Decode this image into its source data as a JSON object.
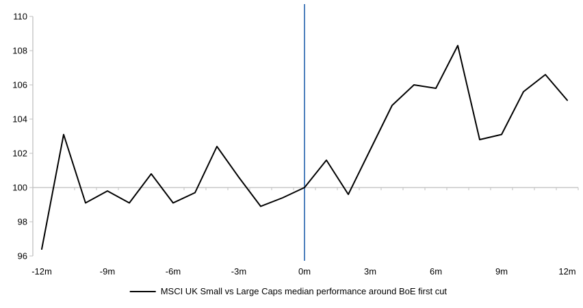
{
  "legend": {
    "label": "MSCI UK Small vs Large Caps median performance around BoE first cut"
  },
  "chart_data": {
    "type": "line",
    "title": "",
    "xlabel": "",
    "ylabel": "",
    "x": [
      -12,
      -11,
      -10,
      -9,
      -8,
      -7,
      -6,
      -5,
      -4,
      -3,
      -2,
      -1,
      0,
      1,
      2,
      3,
      4,
      5,
      6,
      7,
      8,
      9,
      10,
      11,
      12
    ],
    "series": [
      {
        "name": "MSCI UK Small vs Large Caps median performance around BoE first cut",
        "values": [
          96.4,
          103.1,
          99.1,
          99.8,
          99.1,
          100.8,
          99.1,
          99.7,
          102.4,
          100.6,
          98.9,
          99.4,
          100.0,
          101.6,
          99.6,
          102.2,
          104.8,
          106.0,
          105.8,
          108.3,
          102.8,
          103.1,
          105.6,
          106.6,
          105.1
        ]
      }
    ],
    "x_tick_months": [
      -12,
      -9,
      -6,
      -3,
      0,
      3,
      6,
      9,
      12
    ],
    "x_tick_labels": [
      "-12m",
      "-9m",
      "-6m",
      "-3m",
      "0m",
      "3m",
      "6m",
      "9m",
      "12m"
    ],
    "y_ticks": [
      96,
      98,
      100,
      102,
      104,
      106,
      108,
      110
    ],
    "ylim": [
      96,
      110
    ],
    "xlim": [
      -12.5,
      12.5
    ],
    "baseline": 100,
    "event_line_x": 0,
    "grid": "off",
    "legend_position": "bottom-center",
    "colors": {
      "series": "#000000",
      "event_line": "#4f81bd",
      "axis": "#bfbfbf",
      "text": "#000000",
      "background": "#ffffff"
    }
  }
}
